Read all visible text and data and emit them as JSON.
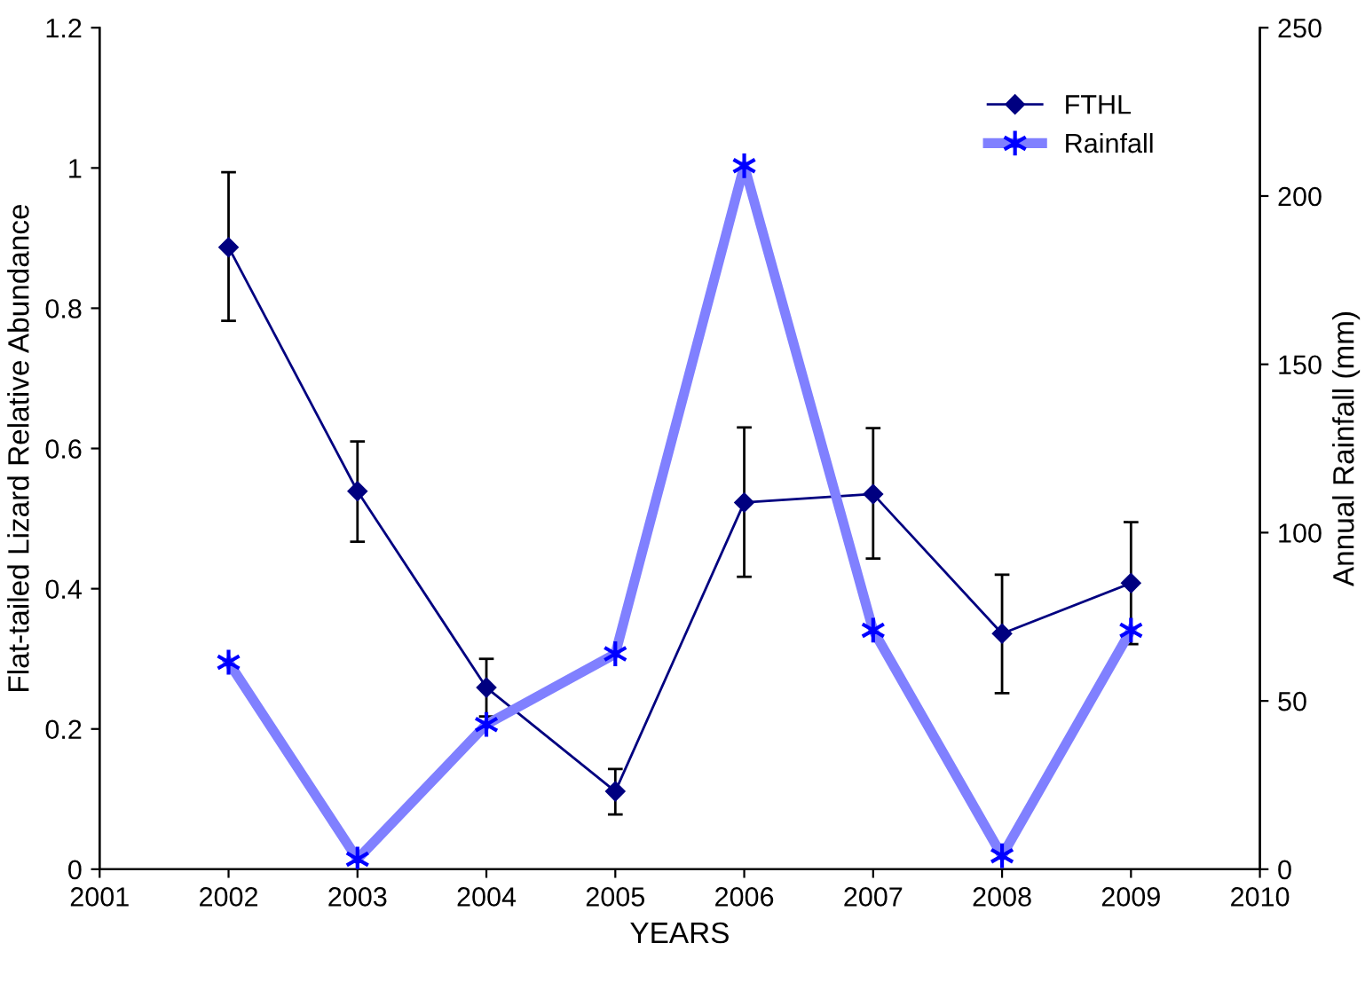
{
  "chart_data": {
    "type": "line",
    "xlabel": "YEARS",
    "ylabel": "Flat-tailed Lizard Relative Abundance",
    "y2label": "Annual Rainfall (mm)",
    "x": [
      2002,
      2003,
      2004,
      2005,
      2006,
      2007,
      2008,
      2009
    ],
    "series": [
      {
        "name": "FTHL",
        "color": "#000080",
        "marker": "diamond",
        "values": [
          0.887,
          0.539,
          0.259,
          0.111,
          0.523,
          0.535,
          0.336,
          0.408
        ],
        "errors": [
          [
            0.782,
            0.994
          ],
          [
            0.467,
            0.61
          ],
          [
            0.218,
            0.3
          ],
          [
            0.078,
            0.143
          ],
          [
            0.417,
            0.63
          ],
          [
            0.443,
            0.629
          ],
          [
            0.251,
            0.42
          ],
          [
            0.321,
            0.495
          ]
        ]
      },
      {
        "name": "Rainfall",
        "color": "#8080ff",
        "marker": "cross",
        "axis": "y2",
        "values": [
          61.5,
          3,
          43,
          64,
          209,
          71,
          4,
          71
        ]
      }
    ],
    "xlim": [
      2001,
      2010
    ],
    "xticks": [
      2001,
      2002,
      2003,
      2004,
      2005,
      2006,
      2007,
      2008,
      2009,
      2010
    ],
    "ylim": [
      0,
      1.2
    ],
    "yticks": [
      0,
      0.2,
      0.4,
      0.6,
      0.8,
      1,
      1.2
    ],
    "y2lim": [
      0,
      250
    ],
    "y2ticks": [
      0,
      50,
      100,
      150,
      200,
      250
    ],
    "grid": false,
    "legend": "top right",
    "line_style": "solid"
  }
}
